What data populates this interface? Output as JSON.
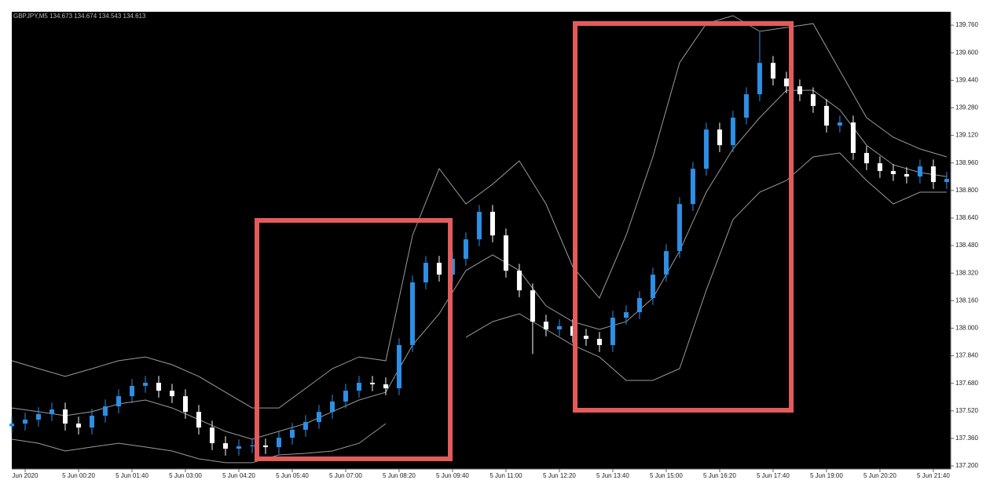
{
  "chart_data": {
    "type": "candlestick",
    "title": "GBPJPY,M5  134.673 134.674 134.543 134.613",
    "x": [
      -80,
      -60,
      -40,
      -20,
      0,
      20,
      40,
      60,
      80,
      100,
      120,
      140,
      160,
      180,
      200,
      220,
      240,
      260,
      280,
      300,
      320,
      340,
      360,
      380,
      400,
      420,
      440,
      460,
      480,
      500,
      520,
      540,
      560,
      580,
      600,
      620,
      640,
      660,
      680,
      700,
      720,
      740,
      760,
      780,
      800,
      820,
      840,
      860,
      880,
      900,
      920,
      940,
      960,
      980,
      1000,
      1020,
      1040,
      1060,
      1080,
      1100,
      1120,
      1140,
      1160,
      1180,
      1200,
      1220,
      1240,
      1260,
      1280,
      1300,
      1320
    ],
    "open": [
      137.43,
      137.446,
      137.469,
      137.501,
      137.528,
      137.446,
      137.423,
      137.492,
      137.546,
      137.605,
      137.665,
      137.683,
      137.637,
      137.605,
      137.514,
      137.423,
      137.332,
      137.3,
      137.314,
      137.319,
      137.309,
      137.364,
      137.41,
      137.455,
      137.514,
      137.574,
      137.637,
      137.683,
      137.674,
      137.651,
      137.902,
      138.266,
      138.38,
      138.311,
      138.403,
      138.516,
      138.676,
      138.539,
      138.334,
      138.22,
      138.038,
      137.993,
      138.012,
      137.956,
      137.938,
      137.902,
      138.061,
      138.093,
      138.175,
      138.311,
      138.448,
      138.721,
      138.926,
      139.154,
      139.063,
      139.223,
      139.359,
      139.541,
      139.45,
      139.405,
      139.359,
      139.291,
      139.177,
      139.195,
      139.018,
      138.958,
      138.913,
      138.895,
      138.881,
      138.94,
      138.849
    ],
    "high": [
      137.486,
      137.509,
      137.541,
      137.568,
      137.568,
      137.486,
      137.532,
      137.586,
      137.645,
      137.705,
      137.723,
      137.723,
      137.677,
      137.645,
      137.554,
      137.463,
      137.372,
      137.354,
      137.359,
      137.359,
      137.404,
      137.45,
      137.495,
      137.554,
      137.614,
      137.677,
      137.723,
      137.723,
      137.714,
      137.942,
      138.306,
      138.42,
      138.42,
      138.443,
      138.556,
      138.716,
      138.716,
      138.579,
      138.374,
      138.26,
      138.078,
      138.052,
      138.052,
      137.996,
      137.978,
      138.101,
      138.133,
      138.215,
      138.351,
      138.488,
      138.761,
      138.966,
      139.194,
      139.194,
      139.263,
      139.399,
      139.72,
      139.581,
      139.49,
      139.445,
      139.399,
      139.331,
      139.235,
      139.235,
      139.058,
      138.998,
      138.953,
      138.935,
      138.98,
      138.98,
      138.907
    ],
    "low": [
      137.39,
      137.406,
      137.429,
      137.461,
      137.406,
      137.383,
      137.383,
      137.452,
      137.506,
      137.565,
      137.625,
      137.597,
      137.565,
      137.474,
      137.383,
      137.292,
      137.26,
      137.26,
      137.274,
      137.269,
      137.269,
      137.324,
      137.37,
      137.415,
      137.474,
      137.534,
      137.597,
      137.634,
      137.611,
      137.611,
      137.862,
      138.226,
      138.271,
      138.271,
      138.363,
      138.476,
      138.499,
      138.294,
      138.18,
      137.85,
      137.953,
      137.953,
      137.916,
      137.898,
      137.862,
      137.862,
      138.021,
      138.053,
      138.135,
      138.271,
      138.408,
      138.681,
      138.886,
      139.023,
      139.023,
      139.183,
      139.319,
      139.41,
      139.365,
      139.319,
      139.251,
      139.137,
      139.137,
      138.978,
      138.918,
      138.873,
      138.855,
      138.841,
      138.841,
      138.809,
      138.809
    ],
    "close": [
      137.446,
      137.469,
      137.501,
      137.528,
      137.446,
      137.423,
      137.492,
      137.546,
      137.605,
      137.665,
      137.683,
      137.637,
      137.605,
      137.514,
      137.423,
      137.332,
      137.3,
      137.314,
      137.319,
      137.309,
      137.364,
      137.41,
      137.455,
      137.514,
      137.574,
      137.637,
      137.683,
      137.674,
      137.651,
      137.902,
      138.266,
      138.38,
      138.311,
      138.403,
      138.516,
      138.676,
      138.539,
      138.334,
      138.22,
      138.038,
      137.993,
      138.012,
      137.956,
      137.938,
      137.902,
      138.061,
      138.093,
      138.175,
      138.311,
      138.448,
      138.721,
      138.926,
      139.154,
      139.063,
      139.223,
      139.359,
      139.541,
      139.45,
      139.405,
      139.359,
      139.291,
      139.177,
      139.195,
      139.018,
      138.958,
      138.913,
      138.895,
      138.881,
      138.94,
      138.849,
      138.867
    ],
    "up_color": "#2e8fe6",
    "down_color": "#ffffff",
    "bands": [
      {
        "color": "#9a9a9a",
        "x": [
          -80,
          -40,
          0,
          40,
          80,
          120,
          160,
          200,
          240,
          280,
          320,
          360,
          400,
          440,
          480,
          520,
          560,
          600,
          640,
          680,
          720,
          760,
          800,
          840,
          880,
          920,
          960,
          1000,
          1040,
          1080,
          1120,
          1160,
          1200,
          1240,
          1280,
          1320
        ],
        "values": [
          137.811,
          137.765,
          137.72,
          137.765,
          137.811,
          137.833,
          137.788,
          137.72,
          137.628,
          137.537,
          137.537,
          137.651,
          137.765,
          137.833,
          137.811,
          138.539,
          138.927,
          138.722,
          138.836,
          138.972,
          138.722,
          138.357,
          138.175,
          138.539,
          138.995,
          139.542,
          139.769,
          139.815,
          139.724,
          139.747,
          139.769,
          139.496,
          139.223,
          139.109,
          139.041,
          138.995
        ]
      },
      {
        "color": "#9a9a9a",
        "x": [
          -80,
          -40,
          0,
          40,
          80,
          120,
          160,
          200,
          240,
          280,
          320,
          360,
          400,
          440,
          480,
          520,
          560,
          600,
          640,
          680,
          720,
          760,
          800,
          840,
          880,
          920,
          960,
          1000,
          1040,
          1080,
          1120,
          1160,
          1200,
          1240,
          1280,
          1320
        ],
        "values": [
          137.537,
          137.515,
          137.492,
          137.515,
          137.56,
          137.583,
          137.537,
          137.469,
          137.401,
          137.355,
          137.401,
          137.446,
          137.515,
          137.583,
          137.628,
          137.902,
          138.084,
          138.335,
          138.426,
          138.335,
          138.13,
          138.038,
          137.993,
          138.038,
          138.175,
          138.448,
          138.79,
          139.041,
          139.223,
          139.382,
          139.382,
          139.268,
          139.063,
          138.949,
          138.904,
          138.881
        ]
      },
      {
        "color": "#9a9a9a",
        "x": [
          -80,
          -40,
          0,
          40,
          80,
          120,
          160,
          200,
          240,
          280,
          320,
          360,
          400,
          440,
          480,
          520,
          560,
          600,
          640,
          680,
          720,
          760,
          800,
          840,
          880,
          920,
          960,
          1000,
          1040,
          1080,
          1120,
          1160,
          1200,
          1240,
          1280,
          1320
        ],
        "values": [
          137.355,
          137.332,
          137.287,
          137.31,
          137.332,
          137.31,
          137.287,
          137.241,
          137.219,
          137.219,
          137.264,
          137.273,
          137.287,
          137.332,
          137.446,
          null,
          null,
          137.947,
          138.038,
          138.084,
          137.993,
          137.902,
          137.833,
          137.697,
          137.697,
          137.765,
          138.221,
          138.631,
          138.79,
          138.858,
          138.995,
          139.018,
          138.858,
          138.722,
          138.79,
          138.79
        ]
      }
    ],
    "xlim": [
      -80,
      1326
    ],
    "ylim": [
      137.182,
      139.838
    ],
    "xticks": [
      {
        "value": -60,
        "label": "Jun 2020"
      },
      {
        "value": 20,
        "label": "5 Jun 00:20"
      },
      {
        "value": 100,
        "label": "5 Jun 01:40"
      },
      {
        "value": 180,
        "label": "5 Jun 03:00"
      },
      {
        "value": 260,
        "label": "5 Jun 04:20"
      },
      {
        "value": 340,
        "label": "5 Jun 05:40"
      },
      {
        "value": 420,
        "label": "5 Jun 07:00"
      },
      {
        "value": 500,
        "label": "5 Jun 08:20"
      },
      {
        "value": 580,
        "label": "5 Jun 09:40"
      },
      {
        "value": 660,
        "label": "5 Jun 11:00"
      },
      {
        "value": 740,
        "label": "5 Jun 12:20"
      },
      {
        "value": 820,
        "label": "5 Jun 13:40"
      },
      {
        "value": 900,
        "label": "5 Jun 15:00"
      },
      {
        "value": 980,
        "label": "5 Jun 16:20"
      },
      {
        "value": 1060,
        "label": "5 Jun 17:40"
      },
      {
        "value": 1140,
        "label": "5 Jun 19:00"
      },
      {
        "value": 1220,
        "label": "5 Jun 20:20"
      },
      {
        "value": 1300,
        "label": "5 Jun 21:40"
      }
    ],
    "yticks": [
      {
        "value": 137.2,
        "label": "137.200"
      },
      {
        "value": 137.36,
        "label": "137.360"
      },
      {
        "value": 137.52,
        "label": "137.520"
      },
      {
        "value": 137.68,
        "label": "137.680"
      },
      {
        "value": 137.84,
        "label": "137.840"
      },
      {
        "value": 138.0,
        "label": "138.000"
      },
      {
        "value": 138.16,
        "label": "138.160"
      },
      {
        "value": 138.32,
        "label": "138.320"
      },
      {
        "value": 138.48,
        "label": "138.480"
      },
      {
        "value": 138.64,
        "label": "138.640"
      },
      {
        "value": 138.8,
        "label": "138.800"
      },
      {
        "value": 138.96,
        "label": "138.960"
      },
      {
        "value": 139.12,
        "label": "139.120"
      },
      {
        "value": 139.28,
        "label": "139.280"
      },
      {
        "value": 139.44,
        "label": "139.440"
      },
      {
        "value": 139.6,
        "label": "139.600"
      },
      {
        "value": 139.76,
        "label": "139.760"
      }
    ]
  }
}
